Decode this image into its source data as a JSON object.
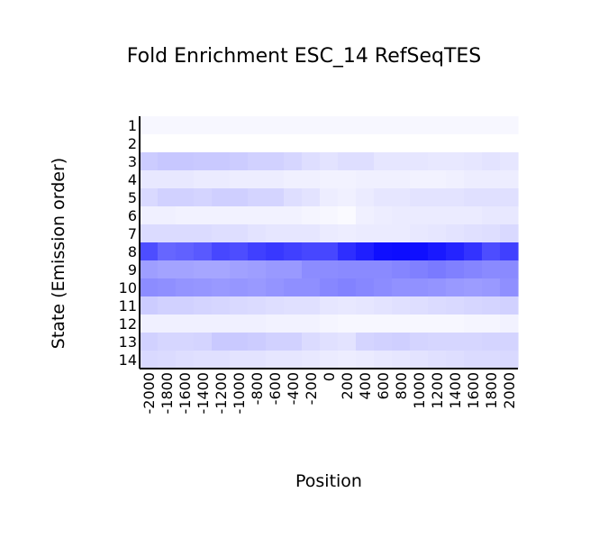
{
  "chart_data": {
    "type": "heatmap",
    "title": "Fold Enrichment ESC_14 RefSeqTES",
    "xlabel": "Position",
    "ylabel": "State (Emission order)",
    "x": [
      "-2000",
      "-1800",
      "-1600",
      "-1400",
      "-1200",
      "-1000",
      "-800",
      "-600",
      "-400",
      "-200",
      "0",
      "200",
      "400",
      "600",
      "800",
      "1000",
      "1200",
      "1400",
      "1600",
      "1800",
      "2000"
    ],
    "y": [
      "1",
      "2",
      "3",
      "4",
      "5",
      "6",
      "7",
      "8",
      "9",
      "10",
      "11",
      "12",
      "13",
      "14"
    ],
    "color_scale": {
      "low": "#ffffff",
      "high": "#0000ff",
      "range": [
        0,
        1
      ]
    },
    "values": [
      [
        0.03,
        0.03,
        0.03,
        0.03,
        0.03,
        0.03,
        0.03,
        0.03,
        0.03,
        0.03,
        0.03,
        0.03,
        0.03,
        0.03,
        0.03,
        0.03,
        0.03,
        0.03,
        0.03,
        0.03,
        0.03
      ],
      [
        0.0,
        0.0,
        0.0,
        0.0,
        0.0,
        0.0,
        0.0,
        0.0,
        0.0,
        0.0,
        0.0,
        0.0,
        0.0,
        0.0,
        0.0,
        0.0,
        0.0,
        0.0,
        0.0,
        0.0,
        0.0
      ],
      [
        0.2,
        0.22,
        0.22,
        0.21,
        0.21,
        0.2,
        0.18,
        0.18,
        0.16,
        0.13,
        0.11,
        0.13,
        0.13,
        0.1,
        0.1,
        0.1,
        0.09,
        0.09,
        0.1,
        0.11,
        0.1
      ],
      [
        0.09,
        0.09,
        0.09,
        0.08,
        0.08,
        0.07,
        0.07,
        0.07,
        0.06,
        0.06,
        0.05,
        0.05,
        0.06,
        0.06,
        0.06,
        0.05,
        0.05,
        0.06,
        0.07,
        0.07,
        0.07
      ],
      [
        0.15,
        0.18,
        0.18,
        0.17,
        0.19,
        0.19,
        0.17,
        0.17,
        0.13,
        0.11,
        0.07,
        0.06,
        0.08,
        0.1,
        0.1,
        0.11,
        0.11,
        0.11,
        0.12,
        0.12,
        0.12
      ],
      [
        0.06,
        0.06,
        0.05,
        0.05,
        0.05,
        0.05,
        0.05,
        0.05,
        0.05,
        0.04,
        0.03,
        0.02,
        0.06,
        0.07,
        0.08,
        0.08,
        0.08,
        0.08,
        0.08,
        0.09,
        0.09
      ],
      [
        0.14,
        0.14,
        0.14,
        0.14,
        0.13,
        0.13,
        0.11,
        0.1,
        0.1,
        0.1,
        0.08,
        0.07,
        0.08,
        0.08,
        0.08,
        0.09,
        0.1,
        0.11,
        0.12,
        0.13,
        0.15
      ],
      [
        0.7,
        0.6,
        0.62,
        0.65,
        0.72,
        0.7,
        0.75,
        0.78,
        0.75,
        0.72,
        0.72,
        0.82,
        0.88,
        0.94,
        0.95,
        0.94,
        0.9,
        0.86,
        0.8,
        0.7,
        0.75
      ],
      [
        0.38,
        0.36,
        0.36,
        0.35,
        0.35,
        0.37,
        0.38,
        0.4,
        0.4,
        0.45,
        0.45,
        0.46,
        0.46,
        0.46,
        0.48,
        0.5,
        0.52,
        0.5,
        0.48,
        0.46,
        0.46
      ],
      [
        0.45,
        0.44,
        0.42,
        0.41,
        0.4,
        0.41,
        0.4,
        0.42,
        0.44,
        0.44,
        0.47,
        0.49,
        0.47,
        0.45,
        0.43,
        0.43,
        0.42,
        0.4,
        0.39,
        0.4,
        0.44
      ],
      [
        0.2,
        0.18,
        0.18,
        0.17,
        0.16,
        0.15,
        0.14,
        0.13,
        0.12,
        0.12,
        0.1,
        0.09,
        0.1,
        0.11,
        0.12,
        0.13,
        0.14,
        0.15,
        0.16,
        0.17,
        0.18
      ],
      [
        0.06,
        0.06,
        0.06,
        0.06,
        0.06,
        0.06,
        0.06,
        0.05,
        0.05,
        0.05,
        0.04,
        0.03,
        0.03,
        0.03,
        0.03,
        0.03,
        0.03,
        0.03,
        0.04,
        0.04,
        0.05
      ],
      [
        0.18,
        0.16,
        0.16,
        0.17,
        0.21,
        0.21,
        0.2,
        0.18,
        0.18,
        0.14,
        0.12,
        0.11,
        0.17,
        0.18,
        0.19,
        0.17,
        0.16,
        0.16,
        0.16,
        0.17,
        0.17
      ],
      [
        0.15,
        0.14,
        0.13,
        0.12,
        0.12,
        0.11,
        0.11,
        0.1,
        0.1,
        0.09,
        0.08,
        0.07,
        0.08,
        0.09,
        0.1,
        0.11,
        0.12,
        0.13,
        0.14,
        0.14,
        0.15
      ]
    ]
  }
}
